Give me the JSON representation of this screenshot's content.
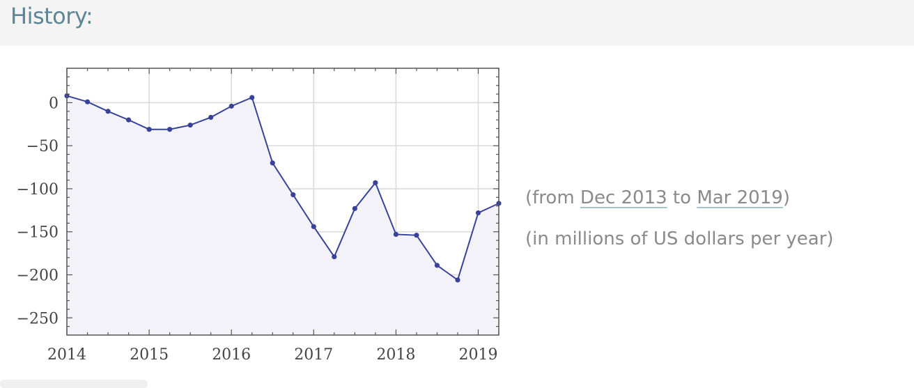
{
  "header": {
    "title": "History:"
  },
  "notes": {
    "range_prefix": "(from ",
    "range_start": "Dec 2013",
    "range_mid": " to ",
    "range_end": "Mar 2019",
    "range_suffix": ")",
    "units": "(in millions of US dollars per year)"
  },
  "colors": {
    "line": "#39429a",
    "fill": "#f2f2f8",
    "grid": "#d9d9d9",
    "header_text": "#5d8593"
  },
  "chart_data": {
    "type": "line",
    "title": "",
    "xlabel": "",
    "ylabel": "",
    "xlim": [
      2014.0,
      2019.25
    ],
    "ylim": [
      -270,
      40
    ],
    "x_ticks": [
      2014,
      2015,
      2016,
      2017,
      2018,
      2019
    ],
    "y_ticks": [
      0,
      -50,
      -100,
      -150,
      -200,
      -250
    ],
    "x_tick_labels": [
      "2014",
      "2015",
      "2016",
      "2017",
      "2018",
      "2019"
    ],
    "y_tick_labels": [
      "0",
      "−50",
      "−100",
      "−150",
      "−200",
      "−250"
    ],
    "grid": true,
    "filled_area": true,
    "series": [
      {
        "x": [
          2014.0,
          2014.25,
          2014.5,
          2014.75,
          2015.0,
          2015.25,
          2015.5,
          2015.75,
          2016.0,
          2016.25,
          2016.5,
          2016.75,
          2017.0,
          2017.25,
          2017.5,
          2017.75,
          2018.0,
          2018.25,
          2018.5,
          2018.75,
          2019.0,
          2019.25
        ],
        "y": [
          8,
          1,
          -10,
          -20,
          -31,
          -31,
          -26,
          -17,
          -4,
          6,
          -70,
          -107,
          -144,
          -179,
          -123,
          -93,
          -153,
          -154,
          -189,
          -206,
          -128,
          -117
        ]
      }
    ]
  }
}
